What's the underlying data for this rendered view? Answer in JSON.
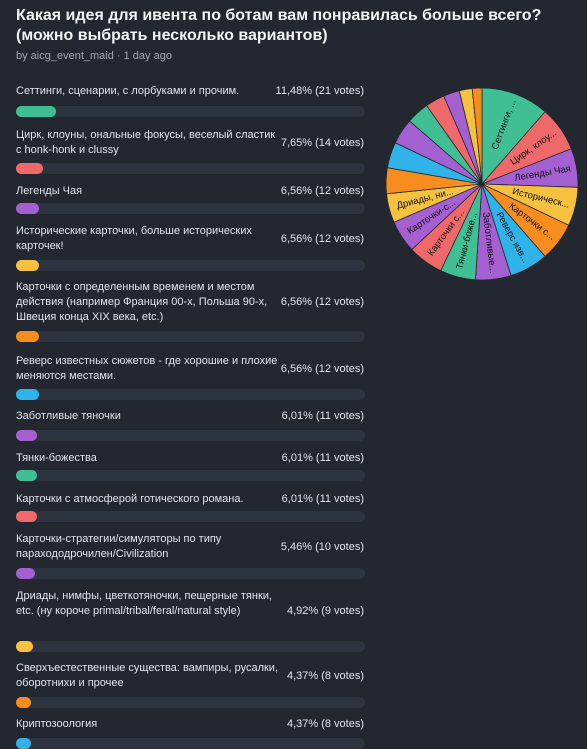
{
  "poll": {
    "title": "Какая идея для ивента по ботам вам понравилась больше всего? (можно выбрать несколько вариантов)",
    "meta": "by aicg_event_maid · 1 day ago",
    "options": [
      {
        "label": "Сеттинги, сценарии, с лорбуками и прочим.",
        "percent_text": "11,48% (21 votes)",
        "percent": 11.48,
        "votes": 21,
        "color": "#3fbf93",
        "pie_label": "Сеттинги, ..."
      },
      {
        "label": "Цирк, клоуны, ональные фокусы, веселый сластик с honk-honk и clussy",
        "percent_text": "7,65% (14 votes)",
        "percent": 7.65,
        "votes": 14,
        "color": "#f0696a",
        "pie_label": "Цирк, клоу..."
      },
      {
        "label": "Легенды Чая",
        "percent_text": "6,56% (12 votes)",
        "percent": 6.56,
        "votes": 12,
        "color": "#a45fd1",
        "pie_label": "Легенды Чая"
      },
      {
        "label": "Исторические карточки, больше исторических карточек!",
        "percent_text": "6,56% (12 votes)",
        "percent": 6.56,
        "votes": 12,
        "color": "#f6c13f",
        "pie_label": "Историческ..."
      },
      {
        "label": "Карточки с определенным временем и местом действия (например Франция 00-х, Польша 90-х, Швеция конца XIX века, etc.)",
        "percent_text": "6,56% (12 votes)",
        "percent": 6.56,
        "votes": 12,
        "color": "#f78d1f",
        "pie_label": "Карточки с..."
      },
      {
        "label": "Реверс известных сюжетов - где хорошие и плохие меняются местами.",
        "percent_text": "6,56% (12 votes)",
        "percent": 6.56,
        "votes": 12,
        "color": "#2fb3e8",
        "pie_label": "Реверс изв..."
      },
      {
        "label": "Заботливые тяночки",
        "percent_text": "6,01% (11 votes)",
        "percent": 6.01,
        "votes": 11,
        "color": "#a45fd1",
        "pie_label": "Заботливые..."
      },
      {
        "label": "Тянки-божества",
        "percent_text": "6,01% (11 votes)",
        "percent": 6.01,
        "votes": 11,
        "color": "#3fbf93",
        "pie_label": "Тянки-боже..."
      },
      {
        "label": "Карточки с атмосферой готического романа.",
        "percent_text": "6,01% (11 votes)",
        "percent": 6.01,
        "votes": 11,
        "color": "#f0696a",
        "pie_label": "Карточки с..."
      },
      {
        "label": "Карточки-стратегии/симуляторы по типу парахододрочилен/Civilization",
        "percent_text": "5,46% (10 votes)",
        "percent": 5.46,
        "votes": 10,
        "color": "#a45fd1",
        "pie_label": "Карточки-с..."
      },
      {
        "label": "Дриады, нимфы, цветкотяночки, пещерные тянки, etc. (ну короче primal/tribal/feral/natural style)",
        "percent_text": "4,92% (9 votes)",
        "percent": 4.92,
        "votes": 9,
        "color": "#f6c13f",
        "pie_label": "Дриады, ни..."
      },
      {
        "label": "Сверхъестественные существа: вампиры, русалки, оборотнихи и прочее",
        "percent_text": "4,37% (8 votes)",
        "percent": 4.37,
        "votes": 8,
        "color": "#f78d1f",
        "pie_label": ""
      },
      {
        "label": "Криптозоология",
        "percent_text": "4,37% (8 votes)",
        "percent": 4.37,
        "votes": 8,
        "color": "#2fb3e8",
        "pie_label": ""
      }
    ],
    "pie_hidden_slices": [
      {
        "percent": 4.37,
        "color": "#a45fd1"
      },
      {
        "percent": 3.83,
        "color": "#3fbf93"
      },
      {
        "percent": 3.28,
        "color": "#f0696a"
      },
      {
        "percent": 2.73,
        "color": "#a45fd1"
      },
      {
        "percent": 2.19,
        "color": "#f6c13f"
      },
      {
        "percent": 1.64,
        "color": "#f78d1f"
      }
    ]
  }
}
